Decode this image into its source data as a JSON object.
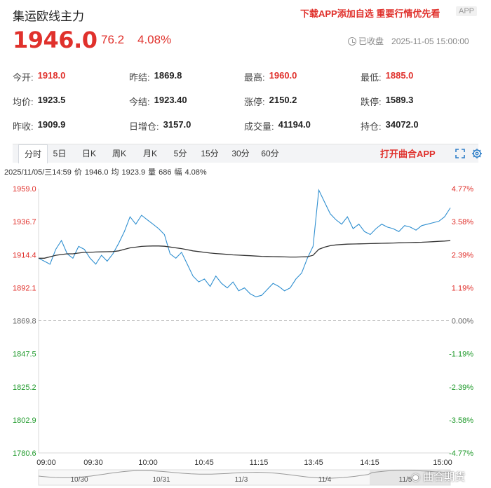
{
  "header": {
    "title": "集运欧线主力",
    "promo": "下载APP添加自选 重要行情优先看",
    "app_tag": "APP"
  },
  "quote": {
    "price": "1946.0",
    "change": "76.2",
    "change_pct": "4.08%",
    "status": "已收盘",
    "datetime": "2025-11-05 15:00:00"
  },
  "stats": [
    [
      {
        "label": "今开:",
        "value": "1918.0",
        "color": "red"
      },
      {
        "label": "昨结:",
        "value": "1869.8",
        "color": "normal"
      },
      {
        "label": "最高:",
        "value": "1960.0",
        "color": "red"
      },
      {
        "label": "最低:",
        "value": "1885.0",
        "color": "red"
      }
    ],
    [
      {
        "label": "均价:",
        "value": "1923.5",
        "color": "normal"
      },
      {
        "label": "今结:",
        "value": "1923.40",
        "color": "normal"
      },
      {
        "label": "涨停:",
        "value": "2150.2",
        "color": "normal"
      },
      {
        "label": "跌停:",
        "value": "1589.3",
        "color": "normal"
      }
    ],
    [
      {
        "label": "昨收:",
        "value": "1909.9",
        "color": "normal"
      },
      {
        "label": "日增仓:",
        "value": "3157.0",
        "color": "normal"
      },
      {
        "label": "成交量:",
        "value": "41194.0",
        "color": "normal"
      },
      {
        "label": "持仓:",
        "value": "34072.0",
        "color": "normal"
      }
    ]
  ],
  "tabs": [
    "分时",
    "5日",
    "日K",
    "周K",
    "月K",
    "5分",
    "15分",
    "30分",
    "60分"
  ],
  "active_tab": "分时",
  "open_app": "打开曲合APP",
  "info": {
    "date": "2025/11/05/三14:59",
    "price_label": "价",
    "price": "1946.0",
    "avg_label": "均",
    "avg": "1923.9",
    "volume_label": "量",
    "volume": "686",
    "amp_label": "幅",
    "amp": "4.08%"
  },
  "chart_data": {
    "type": "line",
    "y_ticks": [
      "1959.0",
      "1936.7",
      "1914.4",
      "1892.1",
      "1869.8",
      "1847.5",
      "1825.2",
      "1802.9",
      "1780.6"
    ],
    "pct_ticks": [
      "4.77%",
      "3.58%",
      "2.39%",
      "1.19%",
      "0.00%",
      "-1.19%",
      "-2.39%",
      "-3.58%",
      "-4.77%"
    ],
    "x_ticks": [
      "09:00",
      "09:30",
      "10:00",
      "10:45",
      "11:15",
      "13:45",
      "14:15",
      "15:00"
    ],
    "ylim": [
      1780.6,
      1959.0
    ],
    "baseline": 1869.8,
    "series": [
      {
        "color": "#2f8fd0",
        "values": [
          1912,
          1910,
          1908,
          1918,
          1924,
          1915,
          1912,
          1920,
          1918,
          1912,
          1908,
          1914,
          1910,
          1915,
          1922,
          1930,
          1940,
          1935,
          1941,
          1938,
          1935,
          1932,
          1928,
          1915,
          1912,
          1916,
          1908,
          1900,
          1896,
          1898,
          1893,
          1900,
          1895,
          1892,
          1896,
          1890,
          1892,
          1888,
          1886,
          1887,
          1891,
          1895,
          1893,
          1890,
          1892,
          1898,
          1902,
          1912,
          1920,
          1958,
          1950,
          1942,
          1938,
          1935,
          1940,
          1932,
          1935,
          1930,
          1928,
          1932,
          1935,
          1933,
          1932,
          1930,
          1934,
          1933,
          1931,
          1934,
          1935,
          1936,
          1937,
          1940,
          1946
        ]
      },
      {
        "color": "#333333",
        "values": [
          1912,
          1912,
          1913,
          1914,
          1914.5,
          1915,
          1915,
          1915.5,
          1916,
          1916,
          1916.2,
          1916.3,
          1916.4,
          1916.5,
          1917,
          1918,
          1919,
          1919.5,
          1920,
          1920.2,
          1920.3,
          1920.3,
          1920.1,
          1919.6,
          1919,
          1918.5,
          1917.8,
          1917,
          1916.5,
          1916,
          1915.5,
          1915.2,
          1914.9,
          1914.6,
          1914.3,
          1914.1,
          1913.9,
          1913.7,
          1913.5,
          1913.3,
          1913.2,
          1913.1,
          1913.0,
          1912.9,
          1912.8,
          1912.8,
          1912.9,
          1913,
          1914,
          1918,
          1919.5,
          1920.5,
          1921,
          1921.3,
          1921.5,
          1921.6,
          1921.7,
          1921.8,
          1921.9,
          1922,
          1922.1,
          1922.2,
          1922.3,
          1922.4,
          1922.5,
          1922.6,
          1922.7,
          1922.8,
          1923,
          1923.2,
          1923.4,
          1923.6,
          1923.9
        ]
      }
    ],
    "grid": false,
    "mini_chart_dates": [
      "10/30",
      "10/31",
      "11/3",
      "11/4",
      "11/5"
    ]
  },
  "watermark": "曲合期货"
}
